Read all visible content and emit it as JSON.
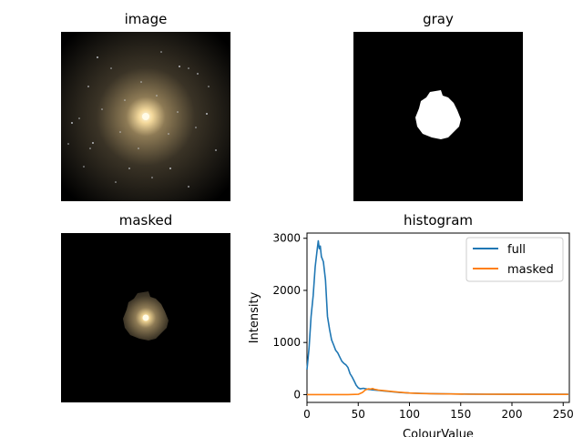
{
  "panels": {
    "image": {
      "title": "image"
    },
    "gray": {
      "title": "gray"
    },
    "masked": {
      "title": "masked"
    },
    "histogram": {
      "title": "histogram"
    }
  },
  "colors": {
    "full": "#1f77b4",
    "masked": "#ff7f0e",
    "galaxy_core": "#fff6d2",
    "galaxy_glow": "#b59a67"
  },
  "chart_data": {
    "type": "line",
    "title": "histogram",
    "xlabel": "ColourValue",
    "ylabel": "Intensity",
    "xlim": [
      0,
      256
    ],
    "ylim": [
      -150,
      3100
    ],
    "xticks": [
      0,
      50,
      100,
      150,
      200,
      250
    ],
    "yticks": [
      0,
      1000,
      2000,
      3000
    ],
    "legend_position": "top-right",
    "grid": false,
    "series": [
      {
        "name": "full",
        "color": "#1f77b4",
        "x": [
          0,
          2,
          4,
          6,
          8,
          10,
          11,
          12,
          13,
          14,
          16,
          18,
          20,
          22,
          24,
          26,
          28,
          30,
          32,
          34,
          36,
          38,
          40,
          42,
          44,
          46,
          48,
          50,
          52,
          55,
          60,
          65,
          70,
          75,
          80,
          90,
          100,
          110,
          120,
          130,
          150,
          175,
          200,
          225,
          255
        ],
        "values": [
          480,
          900,
          1500,
          1900,
          2450,
          2800,
          2950,
          2800,
          2850,
          2650,
          2550,
          2200,
          1500,
          1250,
          1050,
          950,
          850,
          800,
          720,
          640,
          600,
          570,
          520,
          400,
          340,
          260,
          180,
          130,
          110,
          120,
          100,
          90,
          80,
          70,
          60,
          40,
          30,
          25,
          20,
          15,
          10,
          8,
          5,
          5,
          5
        ]
      },
      {
        "name": "masked",
        "color": "#ff7f0e",
        "x": [
          0,
          20,
          40,
          50,
          54,
          57,
          60,
          62,
          64,
          66,
          68,
          70,
          75,
          80,
          90,
          100,
          110,
          120,
          140,
          160,
          200,
          255
        ],
        "values": [
          0,
          0,
          0,
          5,
          40,
          90,
          110,
          105,
          115,
          100,
          95,
          85,
          75,
          65,
          45,
          30,
          22,
          18,
          12,
          8,
          5,
          3
        ]
      }
    ]
  }
}
